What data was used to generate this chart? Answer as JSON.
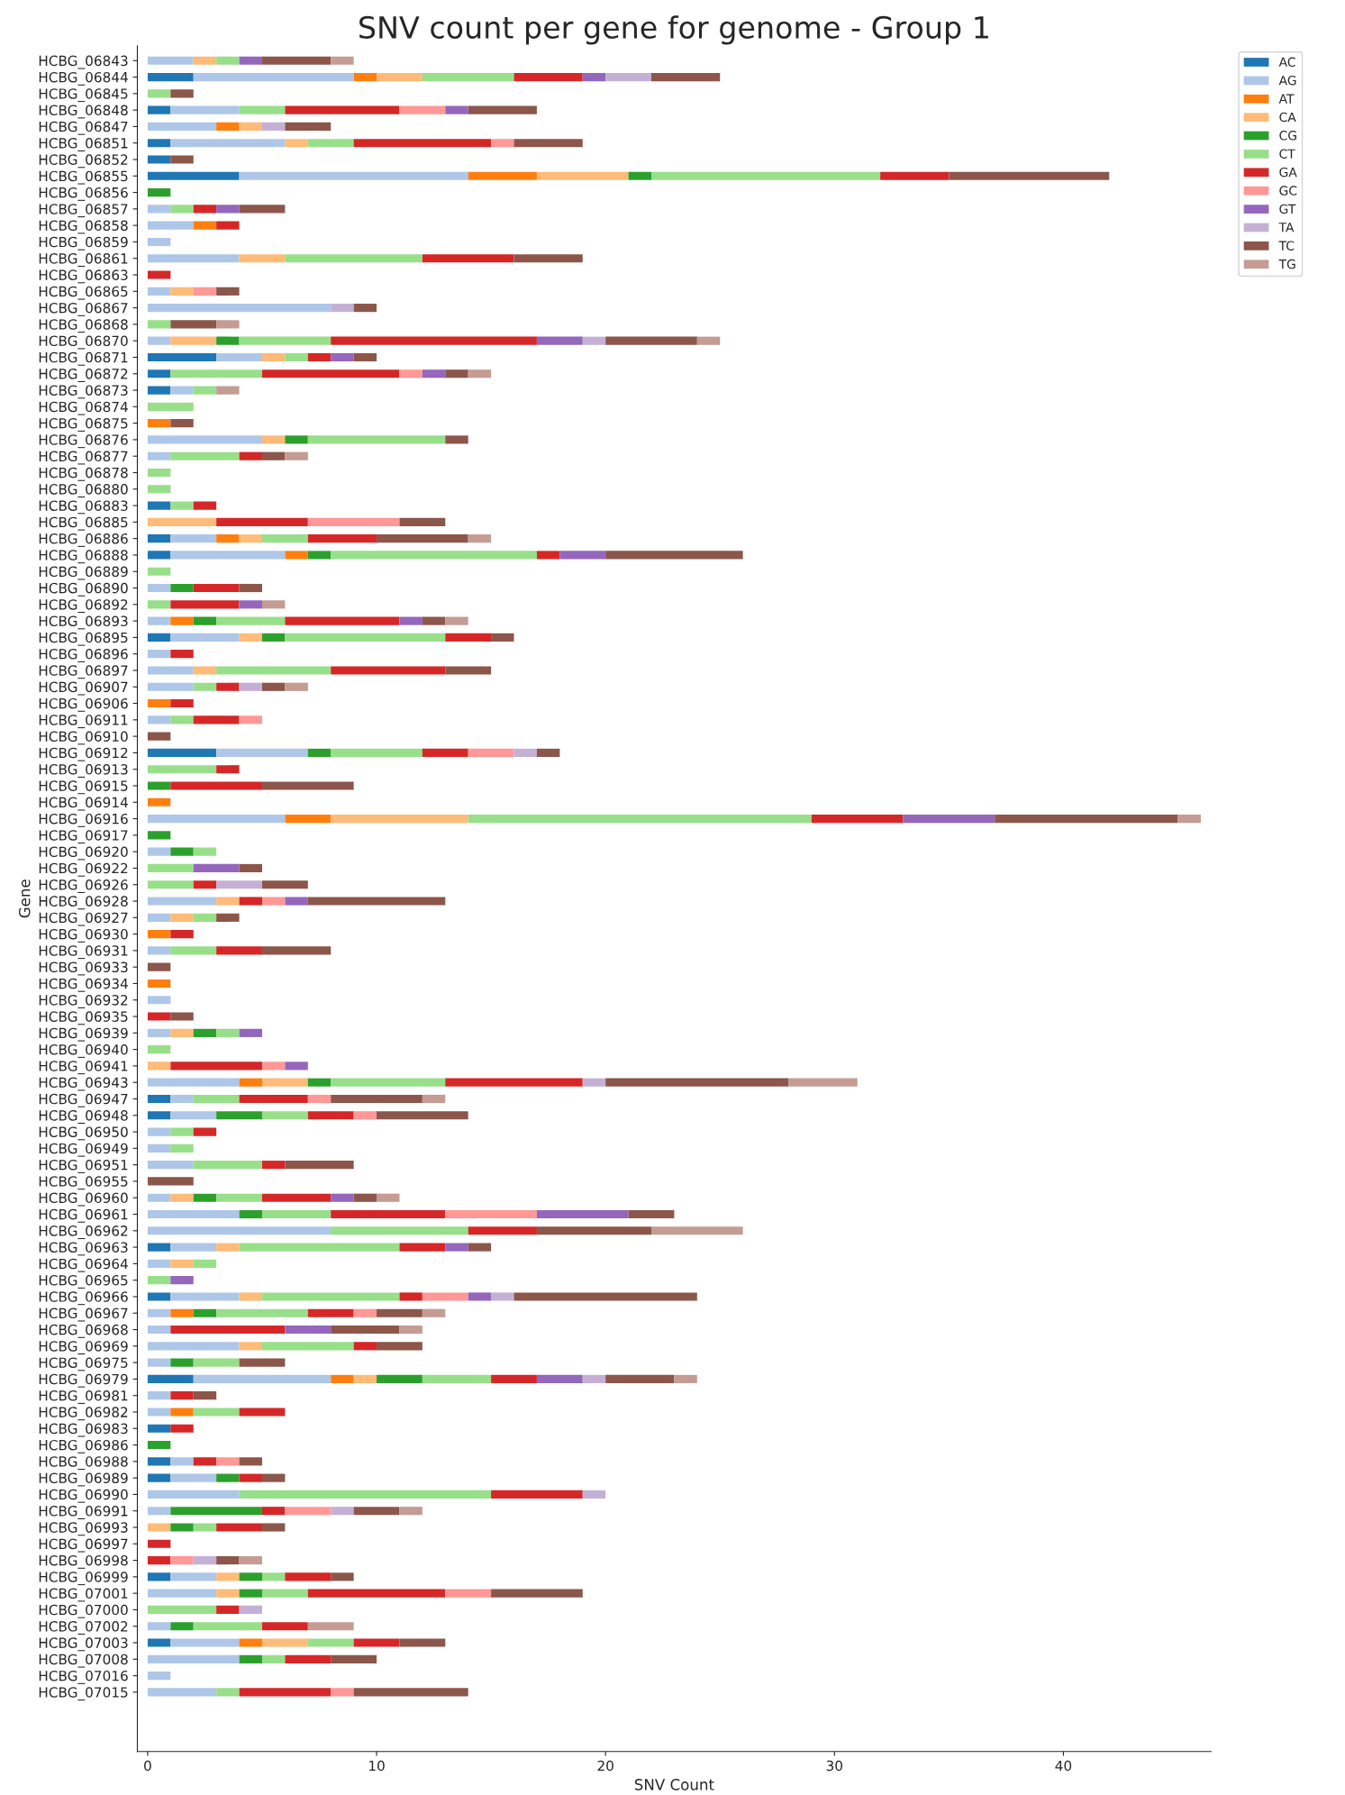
{
  "chart_data": {
    "type": "bar",
    "orientation": "horizontal",
    "stacked": true,
    "title": "SNV count per gene for genome - Group 1",
    "xlabel": "SNV Count",
    "ylabel": "Gene",
    "categories": [
      "HCBG_06843",
      "HCBG_06844",
      "HCBG_06845",
      "HCBG_06848",
      "HCBG_06847",
      "HCBG_06851",
      "HCBG_06852",
      "HCBG_06855",
      "HCBG_06856",
      "HCBG_06857",
      "HCBG_06858",
      "HCBG_06859",
      "HCBG_06861",
      "HCBG_06863",
      "HCBG_06865",
      "HCBG_06867",
      "HCBG_06868",
      "HCBG_06870",
      "HCBG_06871",
      "HCBG_06872",
      "HCBG_06873",
      "HCBG_06874",
      "HCBG_06875",
      "HCBG_06876",
      "HCBG_06877",
      "HCBG_06878",
      "HCBG_06880",
      "HCBG_06883",
      "HCBG_06885",
      "HCBG_06886",
      "HCBG_06888",
      "HCBG_06889",
      "HCBG_06890",
      "HCBG_06892",
      "HCBG_06893",
      "HCBG_06895",
      "HCBG_06896",
      "HCBG_06897",
      "HCBG_06907",
      "HCBG_06906",
      "HCBG_06911",
      "HCBG_06910",
      "HCBG_06912",
      "HCBG_06913",
      "HCBG_06915",
      "HCBG_06914",
      "HCBG_06916",
      "HCBG_06917",
      "HCBG_06920",
      "HCBG_06922",
      "HCBG_06926",
      "HCBG_06928",
      "HCBG_06927",
      "HCBG_06930",
      "HCBG_06931",
      "HCBG_06933",
      "HCBG_06934",
      "HCBG_06932",
      "HCBG_06935",
      "HCBG_06939",
      "HCBG_06940",
      "HCBG_06941",
      "HCBG_06943",
      "HCBG_06947",
      "HCBG_06948",
      "HCBG_06950",
      "HCBG_06949",
      "HCBG_06951",
      "HCBG_06955",
      "HCBG_06960",
      "HCBG_06961",
      "HCBG_06962",
      "HCBG_06963",
      "HCBG_06964",
      "HCBG_06965",
      "HCBG_06966",
      "HCBG_06967",
      "HCBG_06968",
      "HCBG_06969",
      "HCBG_06975",
      "HCBG_06979",
      "HCBG_06981",
      "HCBG_06982",
      "HCBG_06983",
      "HCBG_06986",
      "HCBG_06988",
      "HCBG_06989",
      "HCBG_06990",
      "HCBG_06991",
      "HCBG_06993",
      "HCBG_06997",
      "HCBG_06998",
      "HCBG_06999",
      "HCBG_07001",
      "HCBG_07000",
      "HCBG_07002",
      "HCBG_07003",
      "HCBG_07008",
      "HCBG_07016",
      "HCBG_07015"
    ],
    "series": [
      {
        "name": "AC",
        "color": "#1f77b4",
        "values": [
          0,
          2,
          0,
          1,
          0,
          1,
          1,
          4,
          0,
          0,
          0,
          0,
          0,
          0,
          0,
          0,
          0,
          0,
          3,
          1,
          1,
          0,
          0,
          0,
          0,
          0,
          0,
          1,
          0,
          1,
          1,
          0,
          0,
          0,
          0,
          1,
          0,
          0,
          0,
          0,
          0,
          0,
          3,
          0,
          0,
          0,
          0,
          0,
          0,
          0,
          0,
          0,
          0,
          0,
          0,
          0,
          0,
          0,
          0,
          0,
          0,
          0,
          0,
          1,
          1,
          0,
          0,
          0,
          0,
          0,
          0,
          0,
          1,
          0,
          0,
          1,
          0,
          0,
          0,
          0,
          2,
          0,
          0,
          1,
          0,
          1,
          1,
          0,
          0,
          0,
          0,
          0,
          1,
          0,
          0,
          0,
          1,
          0,
          0,
          0
        ]
      },
      {
        "name": "AG",
        "color": "#aec7e8",
        "values": [
          2,
          7,
          0,
          3,
          3,
          5,
          0,
          10,
          0,
          1,
          2,
          1,
          4,
          0,
          1,
          8,
          0,
          1,
          2,
          0,
          1,
          0,
          0,
          5,
          1,
          0,
          0,
          0,
          0,
          2,
          5,
          0,
          1,
          0,
          1,
          3,
          1,
          2,
          2,
          0,
          1,
          0,
          4,
          0,
          0,
          0,
          6,
          0,
          1,
          0,
          0,
          3,
          1,
          0,
          1,
          0,
          0,
          1,
          0,
          1,
          0,
          0,
          4,
          1,
          2,
          1,
          1,
          2,
          0,
          1,
          4,
          8,
          2,
          1,
          0,
          3,
          1,
          1,
          4,
          1,
          6,
          1,
          1,
          0,
          0,
          1,
          2,
          4,
          1,
          0,
          0,
          0,
          2,
          3,
          0,
          1,
          3,
          4,
          1,
          3
        ]
      },
      {
        "name": "AT",
        "color": "#ff7f0e",
        "values": [
          0,
          1,
          0,
          0,
          1,
          0,
          0,
          3,
          0,
          0,
          1,
          0,
          0,
          0,
          0,
          0,
          0,
          0,
          0,
          0,
          0,
          0,
          1,
          0,
          0,
          0,
          0,
          0,
          0,
          1,
          1,
          0,
          0,
          0,
          1,
          0,
          0,
          0,
          0,
          1,
          0,
          0,
          0,
          0,
          0,
          1,
          2,
          0,
          0,
          0,
          0,
          0,
          0,
          1,
          0,
          0,
          1,
          0,
          0,
          0,
          0,
          0,
          1,
          0,
          0,
          0,
          0,
          0,
          0,
          0,
          0,
          0,
          0,
          0,
          0,
          0,
          1,
          0,
          0,
          0,
          1,
          0,
          1,
          0,
          0,
          0,
          0,
          0,
          0,
          0,
          0,
          0,
          0,
          0,
          0,
          0,
          1,
          0,
          0,
          0
        ]
      },
      {
        "name": "CA",
        "color": "#ffbb78",
        "values": [
          1,
          2,
          0,
          0,
          1,
          1,
          0,
          4,
          0,
          0,
          0,
          0,
          2,
          0,
          1,
          0,
          0,
          2,
          1,
          0,
          0,
          0,
          0,
          1,
          0,
          0,
          0,
          0,
          3,
          1,
          0,
          0,
          0,
          0,
          0,
          1,
          0,
          1,
          0,
          0,
          0,
          0,
          0,
          0,
          0,
          0,
          6,
          0,
          0,
          0,
          0,
          1,
          1,
          0,
          0,
          0,
          0,
          0,
          0,
          1,
          0,
          1,
          2,
          0,
          0,
          0,
          0,
          0,
          0,
          1,
          0,
          0,
          1,
          1,
          0,
          1,
          0,
          0,
          1,
          0,
          1,
          0,
          0,
          0,
          0,
          0,
          0,
          0,
          0,
          1,
          0,
          0,
          1,
          1,
          0,
          0,
          2,
          0,
          0,
          0
        ]
      },
      {
        "name": "CG",
        "color": "#2ca02c",
        "values": [
          0,
          0,
          0,
          0,
          0,
          0,
          0,
          1,
          1,
          0,
          0,
          0,
          0,
          0,
          0,
          0,
          0,
          1,
          0,
          0,
          0,
          0,
          0,
          1,
          0,
          0,
          0,
          0,
          0,
          0,
          1,
          0,
          1,
          0,
          1,
          1,
          0,
          0,
          0,
          0,
          0,
          0,
          1,
          0,
          1,
          0,
          0,
          1,
          1,
          0,
          0,
          0,
          0,
          0,
          0,
          0,
          0,
          0,
          0,
          1,
          0,
          0,
          1,
          0,
          2,
          0,
          0,
          0,
          0,
          1,
          1,
          0,
          0,
          0,
          0,
          0,
          1,
          0,
          0,
          1,
          2,
          0,
          0,
          0,
          1,
          0,
          1,
          0,
          4,
          1,
          0,
          0,
          1,
          1,
          0,
          1,
          0,
          1,
          0,
          0
        ]
      },
      {
        "name": "CT",
        "color": "#98df8a",
        "values": [
          1,
          4,
          1,
          2,
          0,
          2,
          0,
          10,
          0,
          1,
          0,
          0,
          6,
          0,
          0,
          0,
          1,
          4,
          1,
          4,
          1,
          2,
          0,
          6,
          3,
          1,
          1,
          1,
          0,
          2,
          9,
          1,
          0,
          1,
          3,
          7,
          0,
          5,
          1,
          0,
          1,
          0,
          4,
          3,
          0,
          0,
          15,
          0,
          1,
          2,
          2,
          0,
          1,
          0,
          2,
          0,
          0,
          0,
          0,
          1,
          1,
          0,
          5,
          2,
          2,
          1,
          1,
          3,
          0,
          2,
          3,
          6,
          7,
          1,
          1,
          6,
          4,
          0,
          4,
          2,
          3,
          0,
          2,
          0,
          0,
          0,
          0,
          11,
          0,
          1,
          0,
          0,
          1,
          2,
          3,
          3,
          2,
          1,
          0,
          1
        ]
      },
      {
        "name": "GA",
        "color": "#d62728",
        "values": [
          0,
          3,
          0,
          5,
          0,
          6,
          0,
          3,
          0,
          1,
          1,
          0,
          4,
          1,
          0,
          0,
          0,
          9,
          1,
          6,
          0,
          0,
          0,
          0,
          1,
          0,
          0,
          1,
          4,
          3,
          1,
          0,
          2,
          3,
          5,
          2,
          1,
          5,
          1,
          1,
          2,
          0,
          2,
          1,
          4,
          0,
          4,
          0,
          0,
          0,
          1,
          1,
          0,
          1,
          2,
          0,
          0,
          0,
          1,
          0,
          0,
          4,
          6,
          3,
          2,
          1,
          0,
          1,
          0,
          3,
          5,
          3,
          2,
          0,
          0,
          1,
          2,
          5,
          1,
          0,
          2,
          1,
          2,
          1,
          0,
          1,
          1,
          4,
          1,
          2,
          1,
          1,
          2,
          6,
          1,
          2,
          2,
          2,
          0,
          4
        ]
      },
      {
        "name": "GC",
        "color": "#ff9896",
        "values": [
          0,
          0,
          0,
          2,
          0,
          1,
          0,
          0,
          0,
          0,
          0,
          0,
          0,
          0,
          1,
          0,
          0,
          0,
          0,
          1,
          0,
          0,
          0,
          0,
          0,
          0,
          0,
          0,
          4,
          0,
          0,
          0,
          0,
          0,
          0,
          0,
          0,
          0,
          0,
          0,
          1,
          0,
          2,
          0,
          0,
          0,
          0,
          0,
          0,
          0,
          0,
          1,
          0,
          0,
          0,
          0,
          0,
          0,
          0,
          0,
          0,
          1,
          0,
          1,
          1,
          0,
          0,
          0,
          0,
          0,
          4,
          0,
          0,
          0,
          0,
          2,
          1,
          0,
          0,
          0,
          0,
          0,
          0,
          0,
          0,
          1,
          0,
          0,
          2,
          0,
          0,
          1,
          0,
          2,
          0,
          0,
          0,
          0,
          0,
          1
        ]
      },
      {
        "name": "GT",
        "color": "#9467bd",
        "values": [
          1,
          1,
          0,
          1,
          0,
          0,
          0,
          0,
          0,
          1,
          0,
          0,
          0,
          0,
          0,
          0,
          0,
          2,
          1,
          1,
          0,
          0,
          0,
          0,
          0,
          0,
          0,
          0,
          0,
          0,
          2,
          0,
          0,
          1,
          1,
          0,
          0,
          0,
          0,
          0,
          0,
          0,
          0,
          0,
          0,
          0,
          4,
          0,
          0,
          2,
          0,
          1,
          0,
          0,
          0,
          0,
          0,
          0,
          0,
          1,
          0,
          1,
          0,
          0,
          0,
          0,
          0,
          0,
          0,
          1,
          4,
          0,
          1,
          0,
          1,
          1,
          0,
          2,
          0,
          0,
          2,
          0,
          0,
          0,
          0,
          0,
          0,
          0,
          0,
          0,
          0,
          0,
          0,
          0,
          0,
          0,
          0,
          0,
          0,
          0
        ]
      },
      {
        "name": "TA",
        "color": "#c5b0d5",
        "values": [
          0,
          2,
          0,
          0,
          1,
          0,
          0,
          0,
          0,
          0,
          0,
          0,
          0,
          0,
          0,
          1,
          0,
          1,
          0,
          0,
          0,
          0,
          0,
          0,
          0,
          0,
          0,
          0,
          0,
          0,
          0,
          0,
          0,
          0,
          0,
          0,
          0,
          0,
          1,
          0,
          0,
          0,
          1,
          0,
          0,
          0,
          0,
          0,
          0,
          0,
          2,
          0,
          0,
          0,
          0,
          0,
          0,
          0,
          0,
          0,
          0,
          0,
          1,
          0,
          0,
          0,
          0,
          0,
          0,
          0,
          0,
          0,
          0,
          0,
          0,
          1,
          0,
          0,
          0,
          0,
          1,
          0,
          0,
          0,
          0,
          0,
          0,
          1,
          1,
          0,
          0,
          1,
          0,
          0,
          1,
          0,
          0,
          0,
          0,
          0
        ]
      },
      {
        "name": "TC",
        "color": "#8c564b",
        "values": [
          3,
          3,
          1,
          3,
          2,
          3,
          1,
          7,
          0,
          2,
          0,
          0,
          3,
          0,
          1,
          1,
          2,
          4,
          1,
          1,
          0,
          0,
          1,
          1,
          1,
          0,
          0,
          0,
          2,
          4,
          6,
          0,
          1,
          0,
          1,
          1,
          0,
          2,
          1,
          0,
          0,
          1,
          1,
          0,
          4,
          0,
          8,
          0,
          0,
          1,
          2,
          6,
          1,
          0,
          3,
          1,
          0,
          0,
          1,
          0,
          0,
          0,
          8,
          4,
          4,
          0,
          0,
          3,
          2,
          1,
          2,
          5,
          1,
          0,
          0,
          8,
          2,
          3,
          2,
          2,
          3,
          1,
          0,
          0,
          0,
          1,
          1,
          0,
          2,
          1,
          0,
          1,
          1,
          4,
          0,
          0,
          2,
          2,
          0,
          5
        ]
      },
      {
        "name": "TG",
        "color": "#c49c94",
        "values": [
          1,
          0,
          0,
          0,
          0,
          0,
          0,
          0,
          0,
          0,
          0,
          0,
          0,
          0,
          0,
          0,
          1,
          1,
          0,
          1,
          1,
          0,
          0,
          0,
          1,
          0,
          0,
          0,
          0,
          1,
          0,
          0,
          0,
          1,
          1,
          0,
          0,
          0,
          1,
          0,
          0,
          0,
          0,
          0,
          0,
          0,
          1,
          0,
          0,
          0,
          0,
          0,
          0,
          0,
          0,
          0,
          0,
          0,
          0,
          0,
          0,
          0,
          3,
          1,
          0,
          0,
          0,
          0,
          0,
          1,
          0,
          4,
          0,
          0,
          0,
          0,
          1,
          1,
          0,
          0,
          1,
          0,
          0,
          0,
          0,
          0,
          0,
          0,
          1,
          0,
          0,
          1,
          0,
          0,
          0,
          2,
          0,
          0,
          0,
          0
        ]
      }
    ],
    "xlim": [
      -0.45,
      46.45
    ],
    "xticks": [
      0,
      10,
      20,
      30,
      40
    ],
    "legend": "top right",
    "grid": false
  }
}
